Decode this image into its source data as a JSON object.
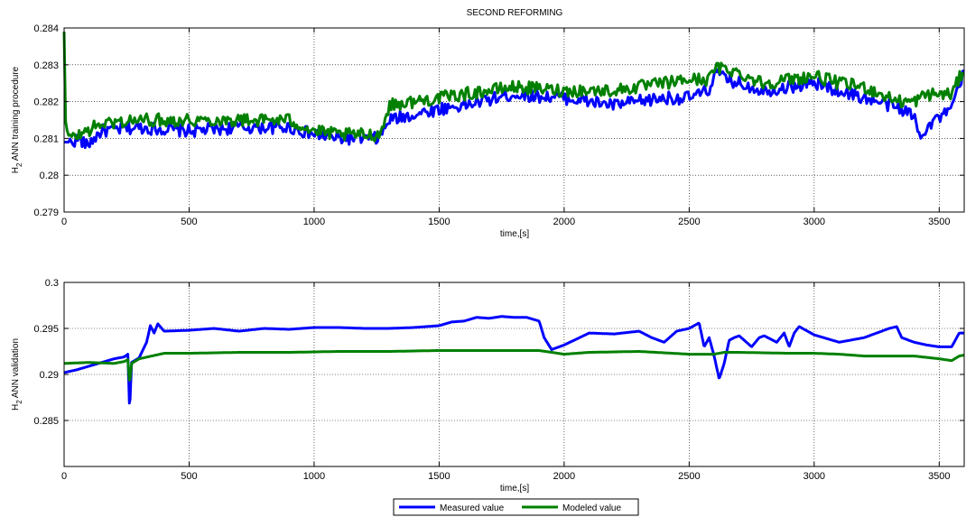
{
  "figure": {
    "title": "SECOND REFORMING",
    "legend": {
      "placement": "bottom-center",
      "entries": [
        {
          "name": "Measured value",
          "color": "#0000ff"
        },
        {
          "name": "Modeled value",
          "color": "#008000"
        }
      ]
    }
  },
  "chart_data": [
    {
      "type": "line",
      "title": "SECOND REFORMING",
      "xlabel": "time,[s]",
      "ylabel_main": "H",
      "ylabel_sub": "2",
      "ylabel_rest": " ANN training procedure",
      "xlim": [
        0,
        3600
      ],
      "ylim": [
        0.279,
        0.284
      ],
      "xticks": [
        0,
        500,
        1000,
        1500,
        2000,
        2500,
        3000,
        3500
      ],
      "xtick_labels": [
        "0",
        "500",
        "1000",
        "1500",
        "2000",
        "2500",
        "3000",
        "3500"
      ],
      "yticks": [
        0.279,
        0.28,
        0.281,
        0.282,
        0.283,
        0.284
      ],
      "ytick_labels": [
        "0.279",
        "0.28",
        "0.281",
        "0.282",
        "0.283",
        "0.284"
      ],
      "grid": true,
      "noise": true,
      "series": [
        {
          "name": "Measured value",
          "color": "#0000ff",
          "x": [
            0,
            30,
            60,
            90,
            150,
            300,
            500,
            700,
            900,
            1000,
            1100,
            1250,
            1270,
            1300,
            1500,
            1600,
            1800,
            2000,
            2200,
            2400,
            2500,
            2580,
            2600,
            2650,
            2800,
            2900,
            3000,
            3100,
            3200,
            3300,
            3350,
            3400,
            3420,
            3480,
            3540,
            3570,
            3600
          ],
          "y": [
            0.2809,
            0.2809,
            0.281,
            0.2808,
            0.2812,
            0.2813,
            0.2812,
            0.2813,
            0.2813,
            0.2811,
            0.281,
            0.281,
            0.2811,
            0.2815,
            0.2818,
            0.2819,
            0.2822,
            0.2821,
            0.2819,
            0.2821,
            0.2821,
            0.2823,
            0.2828,
            0.2826,
            0.2823,
            0.2824,
            0.2825,
            0.2823,
            0.2821,
            0.2819,
            0.2818,
            0.2816,
            0.2811,
            0.2815,
            0.2817,
            0.2822,
            0.2828
          ]
        },
        {
          "name": "Modeled value",
          "color": "#008000",
          "x": [
            0,
            5,
            15,
            30,
            60,
            90,
            150,
            300,
            500,
            700,
            900,
            1000,
            1100,
            1250,
            1270,
            1300,
            1500,
            1600,
            1800,
            2000,
            2200,
            2400,
            2500,
            2580,
            2600,
            2650,
            2800,
            2900,
            3000,
            3100,
            3200,
            3300,
            3350,
            3400,
            3450,
            3500,
            3550,
            3600
          ],
          "y": [
            0.2839,
            0.2815,
            0.2811,
            0.281,
            0.2811,
            0.2812,
            0.2814,
            0.2815,
            0.2815,
            0.2815,
            0.2815,
            0.2812,
            0.2811,
            0.2811,
            0.2812,
            0.2819,
            0.2821,
            0.2822,
            0.2824,
            0.2823,
            0.2823,
            0.2825,
            0.2826,
            0.2826,
            0.2829,
            0.2829,
            0.2825,
            0.2826,
            0.2827,
            0.2825,
            0.2824,
            0.2821,
            0.282,
            0.282,
            0.2822,
            0.2822,
            0.2822,
            0.2829
          ]
        }
      ]
    },
    {
      "type": "line",
      "title": "",
      "xlabel": "time,[s]",
      "ylabel_main": "H",
      "ylabel_sub": "2",
      "ylabel_rest": " ANN validation",
      "xlim": [
        0,
        3600
      ],
      "ylim": [
        0.28,
        0.3
      ],
      "xticks": [
        0,
        500,
        1000,
        1500,
        2000,
        2500,
        3000,
        3500
      ],
      "xtick_labels": [
        "0",
        "500",
        "1000",
        "1500",
        "2000",
        "2500",
        "3000",
        "3500"
      ],
      "yticks": [
        0.285,
        0.29,
        0.295,
        0.3
      ],
      "ytick_labels": [
        "0.285",
        "0.29",
        "0.295",
        "0.3"
      ],
      "grid": true,
      "noise": false,
      "series": [
        {
          "name": "Measured value",
          "color": "#0000ff",
          "x": [
            0,
            50,
            100,
            150,
            200,
            240,
            255,
            262,
            270,
            300,
            330,
            345,
            360,
            375,
            400,
            500,
            600,
            700,
            800,
            900,
            1000,
            1100,
            1200,
            1300,
            1400,
            1500,
            1550,
            1600,
            1650,
            1700,
            1750,
            1800,
            1850,
            1900,
            1920,
            1950,
            2000,
            2100,
            2200,
            2300,
            2350,
            2400,
            2450,
            2500,
            2520,
            2540,
            2560,
            2580,
            2600,
            2620,
            2640,
            2660,
            2680,
            2700,
            2750,
            2780,
            2800,
            2850,
            2880,
            2900,
            2920,
            2940,
            3000,
            3100,
            3200,
            3250,
            3300,
            3330,
            3350,
            3400,
            3450,
            3500,
            3550,
            3580,
            3600
          ],
          "y": [
            0.2902,
            0.2905,
            0.2909,
            0.2913,
            0.2917,
            0.2919,
            0.2922,
            0.286,
            0.2913,
            0.2918,
            0.2935,
            0.2953,
            0.2945,
            0.2955,
            0.2947,
            0.2948,
            0.295,
            0.2947,
            0.295,
            0.2949,
            0.2951,
            0.2951,
            0.295,
            0.295,
            0.2951,
            0.2953,
            0.2957,
            0.2958,
            0.2962,
            0.2961,
            0.2963,
            0.2962,
            0.2962,
            0.2958,
            0.294,
            0.2927,
            0.2932,
            0.2945,
            0.2944,
            0.2947,
            0.294,
            0.2935,
            0.2947,
            0.295,
            0.2953,
            0.2956,
            0.293,
            0.294,
            0.292,
            0.2895,
            0.2912,
            0.2937,
            0.294,
            0.2942,
            0.293,
            0.294,
            0.2942,
            0.2935,
            0.2945,
            0.293,
            0.2945,
            0.2952,
            0.2943,
            0.2935,
            0.294,
            0.2945,
            0.295,
            0.2952,
            0.294,
            0.2935,
            0.2932,
            0.293,
            0.293,
            0.2945,
            0.2945
          ]
        },
        {
          "name": "Modeled value",
          "color": "#008000",
          "x": [
            0,
            100,
            200,
            240,
            255,
            262,
            270,
            300,
            350,
            400,
            500,
            700,
            900,
            1100,
            1300,
            1500,
            1700,
            1900,
            1950,
            2000,
            2100,
            2300,
            2500,
            2600,
            2640,
            2700,
            2900,
            3000,
            3100,
            3200,
            3300,
            3400,
            3500,
            3550,
            3580,
            3600
          ],
          "y": [
            0.2912,
            0.2913,
            0.2912,
            0.2914,
            0.2916,
            0.289,
            0.2912,
            0.2917,
            0.292,
            0.2923,
            0.2923,
            0.2924,
            0.2924,
            0.2925,
            0.2925,
            0.2926,
            0.2926,
            0.2926,
            0.2924,
            0.2922,
            0.2924,
            0.2925,
            0.2922,
            0.2922,
            0.2924,
            0.2924,
            0.2923,
            0.2923,
            0.2922,
            0.292,
            0.292,
            0.292,
            0.2917,
            0.2915,
            0.292,
            0.2921
          ]
        }
      ]
    }
  ]
}
